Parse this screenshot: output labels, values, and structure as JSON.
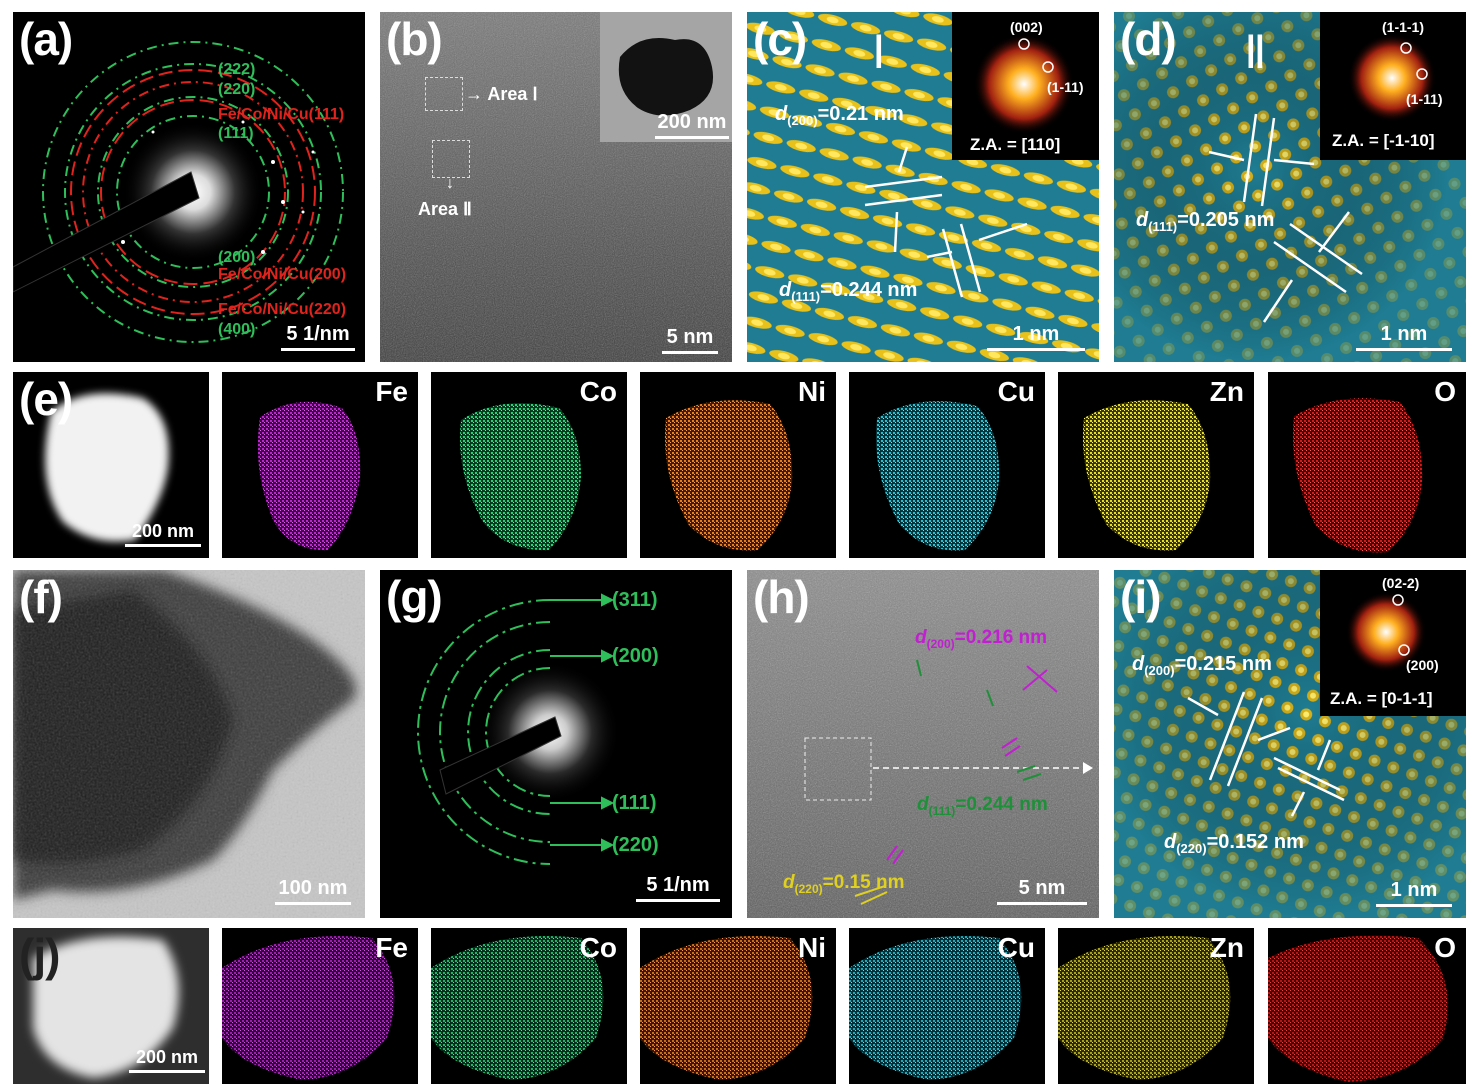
{
  "panels": {
    "a": {
      "label": "(a)",
      "rings_green": [
        "(222)",
        "(220)",
        "(111)",
        "(200)",
        "(400)"
      ],
      "rings_red": [
        "Fe/Co/Ni/Cu(111)",
        "Fe/Co/Ni/Cu(200)",
        "Fe/Co/Ni/Cu(220)"
      ],
      "scale": "5 1/nm"
    },
    "b": {
      "label": "(b)",
      "area1": "Area Ⅰ",
      "area2": "Area Ⅱ",
      "inset_scale": "200 nm",
      "scale": "5 nm"
    },
    "c": {
      "label": "(c)",
      "roman": "Ⅰ",
      "fft_spot1": "(002)",
      "fft_spot2": "(1-11)",
      "zone_axis": "Z.A. = [110]",
      "d200_pre": "d",
      "d200_sub": "(200)",
      "d200_val": "=0.21 nm",
      "d111_pre": "d",
      "d111_sub": "(111)",
      "d111_val": "=0.244 nm",
      "scale": "1 nm"
    },
    "d": {
      "label": "(d)",
      "roman": "Ⅱ",
      "fft_spot1": "(1-1-1)",
      "fft_spot2": "(1-11)",
      "zone_axis": "Z.A. = [-1-10]",
      "d111_pre": "d",
      "d111_sub": "(111)",
      "d111_val": "=0.205 nm",
      "scale": "1 nm"
    },
    "e": {
      "label": "(e)",
      "scale": "200 nm",
      "elements": [
        "Fe",
        "Co",
        "Ni",
        "Cu",
        "Zn",
        "O"
      ]
    },
    "f": {
      "label": "(f)",
      "scale": "100 nm"
    },
    "g": {
      "label": "(g)",
      "rings": [
        "(311)",
        "(200)",
        "(111)",
        "(220)"
      ],
      "scale": "5 1/nm"
    },
    "h": {
      "label": "(h)",
      "d200_pre": "d",
      "d200_sub": "(200)",
      "d200_val": "=0.216 nm",
      "d111_pre": "d",
      "d111_sub": "(111)",
      "d111_val": "=0.244 nm",
      "d220_pre": "d",
      "d220_sub": "(220)",
      "d220_val": "=0.15 nm",
      "scale": "5 nm"
    },
    "i": {
      "label": "(i)",
      "fft_spot1": "(02-2)",
      "fft_spot2": "(200)",
      "zone_axis": "Z.A. = [0-1-1]",
      "d200_pre": "d",
      "d200_sub": "(200)",
      "d200_val": "=0.215 nm",
      "d220_pre": "d",
      "d220_sub": "(220)",
      "d220_val": "=0.152 nm",
      "scale": "1 nm"
    },
    "j": {
      "label": "(j)",
      "scale": "200 nm",
      "elements": [
        "Fe",
        "Co",
        "Ni",
        "Cu",
        "Zn",
        "O"
      ]
    }
  },
  "colors": {
    "ring_green": "#2fbf5a",
    "ring_red": "#e0231c",
    "fe": "#c21fd6",
    "co": "#1ed67a",
    "ni": "#f07a17",
    "cu": "#1ec4d6",
    "zn": "#e6dd1d",
    "o": "#e01414",
    "label_magenta": "#c020d0",
    "label_green": "#1f8f3a",
    "label_yellow": "#e0d020"
  }
}
